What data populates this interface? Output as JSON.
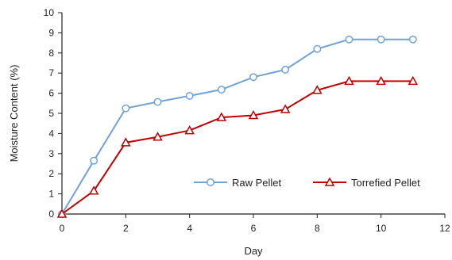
{
  "chart_data": {
    "type": "line",
    "title": "",
    "xlabel": "Day",
    "ylabel": "Moisture Content (%)",
    "xlim": [
      0,
      12
    ],
    "ylim": [
      0,
      10
    ],
    "x_ticks": [
      0,
      2,
      4,
      6,
      8,
      10,
      12
    ],
    "y_ticks": [
      0,
      1,
      2,
      3,
      4,
      5,
      6,
      7,
      8,
      9,
      10
    ],
    "x": [
      0,
      1,
      2,
      3,
      4,
      5,
      6,
      7,
      8,
      9,
      10,
      11
    ],
    "grid": false,
    "legend_position": "bottom-right",
    "series": [
      {
        "name": "Raw Pellet",
        "color": "#6fa3d6",
        "marker": "circle",
        "values": [
          0,
          2.65,
          5.25,
          5.57,
          5.87,
          6.18,
          6.8,
          7.17,
          8.2,
          8.67,
          8.67,
          8.67
        ]
      },
      {
        "name": "Torrefied Pellet",
        "color": "#c00000",
        "marker": "triangle",
        "values": [
          0,
          1.15,
          3.55,
          3.83,
          4.15,
          4.8,
          4.9,
          5.2,
          6.15,
          6.6,
          6.6,
          6.6
        ]
      }
    ]
  }
}
